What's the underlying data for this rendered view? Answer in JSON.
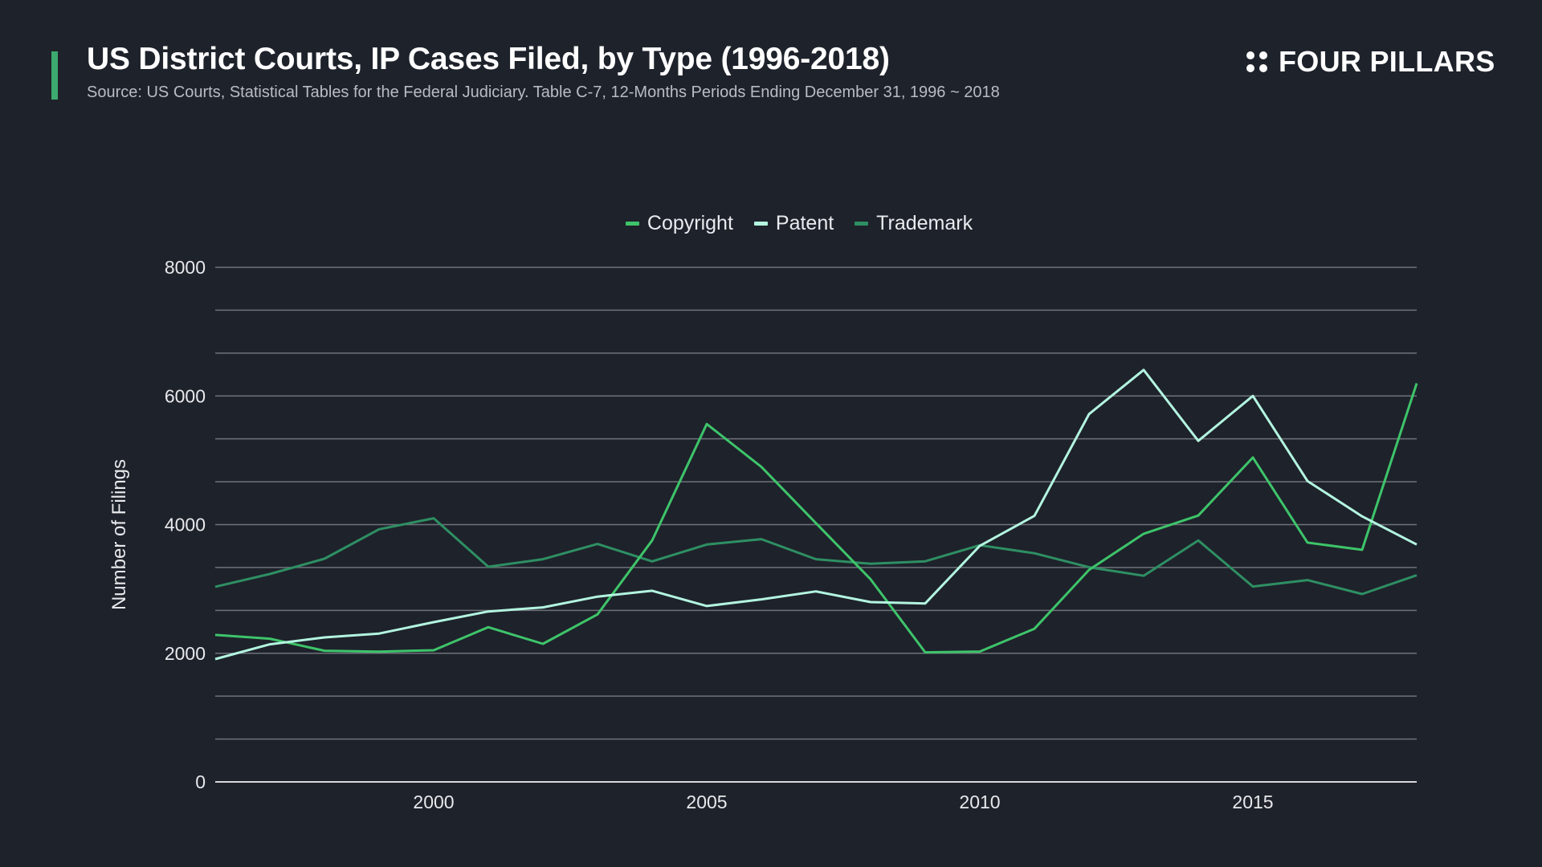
{
  "header": {
    "title": "US District Courts, IP Cases Filed, by Type (1996-2018)",
    "subtitle": "Source: US Courts, Statistical Tables for the Federal Judiciary. Table C-7, 12-Months Periods Ending December 31, 1996 ~ 2018",
    "accent_color": "#3dab6f"
  },
  "brand": {
    "logo_icon": "four-dots-icon",
    "name": "FOUR PILLARS"
  },
  "chart_data": {
    "type": "line",
    "title": "US District Courts, IP Cases Filed, by Type (1996-2018)",
    "subtitle": "Source: US Courts, Statistical Tables for the Federal Judiciary. Table C-7, 12-Months Periods Ending December 31, 1996 ~ 2018",
    "xlabel": "",
    "ylabel": "Number of Filings",
    "xlim": [
      1996,
      2018
    ],
    "ylim": [
      0,
      8000
    ],
    "x_ticks": [
      2000,
      2005,
      2010,
      2015
    ],
    "x_tick_labels": [
      "2000",
      "2005",
      "2010",
      "2015"
    ],
    "y_ticks": [
      0,
      2000,
      4000,
      6000,
      8000
    ],
    "y_tick_labels": [
      "0",
      "2000",
      "4000",
      "6000",
      "8000"
    ],
    "grid": true,
    "grid_step": 666.67,
    "legend_position": "top-center",
    "x": [
      1996,
      1997,
      1998,
      1999,
      2000,
      2001,
      2002,
      2003,
      2004,
      2005,
      2006,
      2007,
      2008,
      2009,
      2010,
      2011,
      2012,
      2013,
      2014,
      2015,
      2016,
      2017,
      2018
    ],
    "series": [
      {
        "name": "Copyright",
        "color": "#3ec46a",
        "values": [
          2285,
          2226,
          2039,
          2026,
          2047,
          2405,
          2147,
          2605,
          3754,
          5564,
          4897,
          4023,
          3150,
          2014,
          2027,
          2381,
          3296,
          3858,
          4141,
          5043,
          3720,
          3608,
          6196
        ]
      },
      {
        "name": "Patent",
        "color": "#b3f5e0",
        "values": [
          1910,
          2139,
          2247,
          2306,
          2484,
          2650,
          2713,
          2880,
          2971,
          2734,
          2838,
          2962,
          2796,
          2775,
          3670,
          4136,
          5718,
          6405,
          5302,
          6001,
          4678,
          4128,
          3691
        ]
      },
      {
        "name": "Trademark",
        "color": "#2e8f63",
        "values": [
          3034,
          3233,
          3470,
          3928,
          4099,
          3345,
          3462,
          3699,
          3429,
          3691,
          3774,
          3462,
          3391,
          3430,
          3679,
          3554,
          3337,
          3205,
          3754,
          3038,
          3138,
          2921,
          3212
        ]
      }
    ]
  }
}
